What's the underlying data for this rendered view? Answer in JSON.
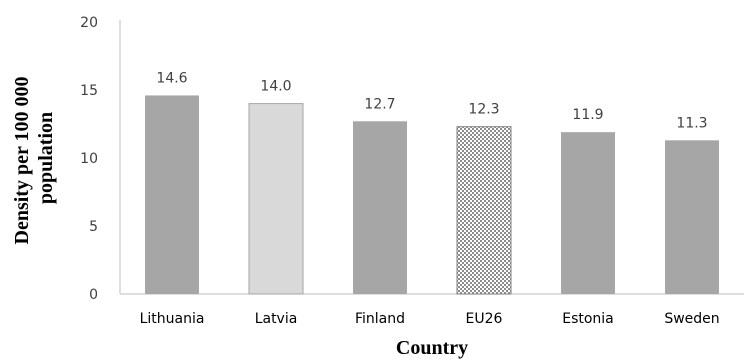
{
  "chart_data": {
    "type": "bar",
    "title": "",
    "xlabel": "Country",
    "ylabel_lines": [
      "Density per 100 000",
      "population"
    ],
    "categories": [
      "Lithuania",
      "Latvia",
      "Finland",
      "EU26",
      "Estonia",
      "Sweden"
    ],
    "values": [
      14.6,
      14.0,
      12.7,
      12.3,
      11.9,
      11.3
    ],
    "value_labels": [
      "14.6",
      "14.0",
      "12.7",
      "12.3",
      "11.9",
      "11.3"
    ],
    "ylim": [
      0,
      20
    ],
    "yticks": [
      "0",
      "5",
      "10",
      "15",
      "20"
    ],
    "grid": false,
    "legend": "none",
    "bar_styles": [
      "dark-gray",
      "light-gray",
      "dark-gray",
      "dotted-pattern",
      "dark-gray",
      "dark-gray"
    ]
  },
  "colors": {
    "dark_gray": "#a6a6a6",
    "light_gray": "#d9d9d9",
    "pattern_dot": "#8c8c8c",
    "axis": "#bfbfbf"
  }
}
